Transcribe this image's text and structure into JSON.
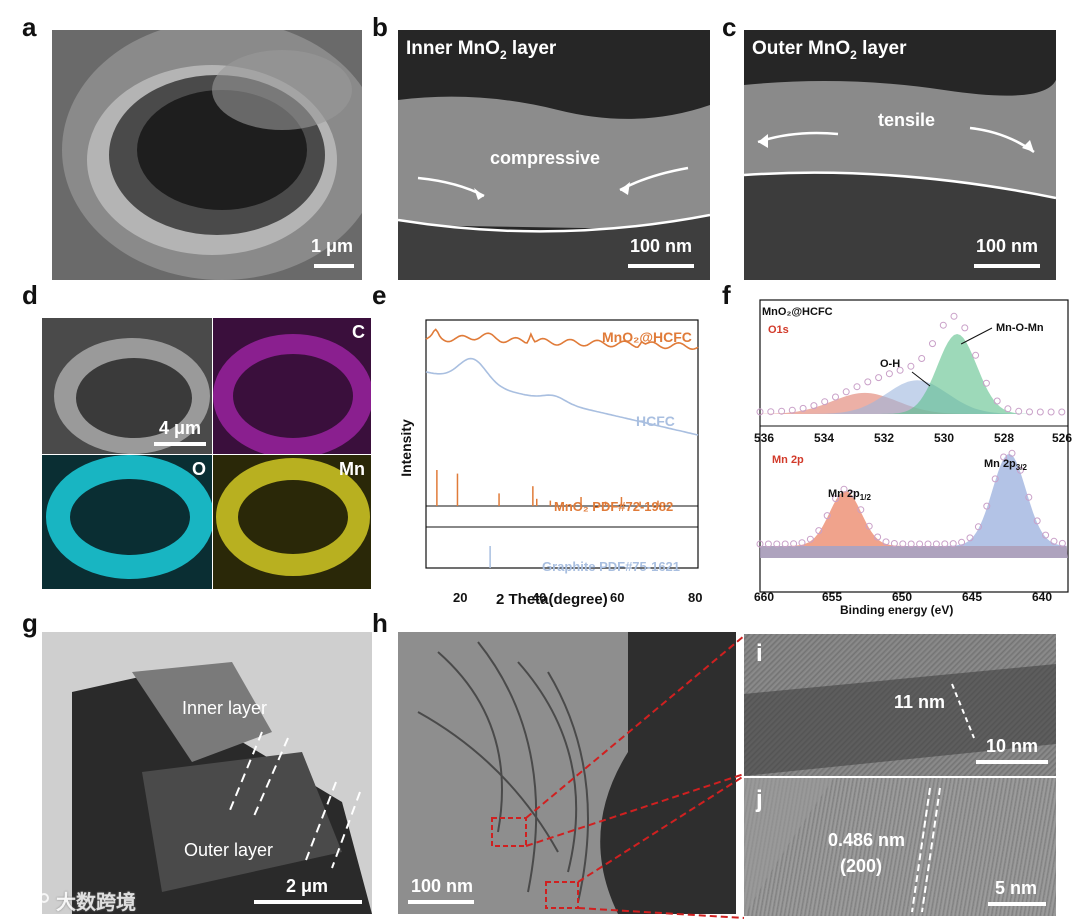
{
  "panel_labels": {
    "a": "a",
    "b": "b",
    "c": "c",
    "d": "d",
    "e": "e",
    "f": "f",
    "g": "g",
    "h": "h",
    "i": "i",
    "j": "j"
  },
  "panel_a": {
    "scale": "1 μm"
  },
  "panel_b": {
    "title_pre": "Inner MnO",
    "title_sub": "2",
    "title_post": " layer",
    "annotation": "compressive",
    "scale": "100 nm"
  },
  "panel_c": {
    "title_pre": "Outer MnO",
    "title_sub": "2",
    "title_post": " layer",
    "annotation": "tensile",
    "scale": "100 nm"
  },
  "panel_d": {
    "scale": "4 μm",
    "map_c": "C",
    "map_o": "O",
    "map_mn": "Mn",
    "colors": {
      "c": "#8a1f8f",
      "o": "#18b5c2",
      "mn": "#b8b020"
    }
  },
  "panel_g": {
    "inner": "Inner layer",
    "outer": "Outer layer",
    "scale": "2 μm"
  },
  "panel_h": {
    "scale": "100 nm"
  },
  "panel_i": {
    "measure": "11 nm",
    "scale": "10 nm"
  },
  "panel_j": {
    "spacing": "0.486 nm",
    "plane": "(200)",
    "scale": "5 nm"
  },
  "watermark": {
    "text": "大数跨境"
  },
  "chart_data": [
    {
      "type": "line",
      "panel": "e",
      "xlabel": "2 Theta(degree)",
      "ylabel": "Intensity",
      "xticks": [
        "20",
        "40",
        "60",
        "80"
      ],
      "xlim": [
        10,
        80
      ],
      "series": [
        {
          "name": "MnO₂@HCFC",
          "color": "#e07b39"
        },
        {
          "name": "HCFC",
          "color": "#a9bfe0"
        }
      ],
      "reference": [
        {
          "name": "MnO₂ PDF#72-1982",
          "color": "#e07b39",
          "peaks": [
            [
              12.8,
              1.0
            ],
            [
              18.1,
              0.9
            ],
            [
              28.8,
              0.35
            ],
            [
              37.5,
              0.55
            ],
            [
              38.5,
              0.2
            ],
            [
              42.0,
              0.15
            ],
            [
              49.9,
              0.25
            ],
            [
              56.2,
              0.12
            ],
            [
              60.3,
              0.25
            ],
            [
              65.1,
              0.12
            ],
            [
              69.7,
              0.15
            ]
          ]
        },
        {
          "name": "Graphite PDF#75-1621",
          "color": "#a9bfe0",
          "peaks": [
            [
              26.5,
              1.0
            ]
          ]
        }
      ]
    },
    {
      "type": "line",
      "panel": "f",
      "xlabel": "Binding energy (eV)",
      "top": {
        "sample": "MnO₂@HCFC",
        "region": "O1s",
        "xticks": [
          "536",
          "534",
          "532",
          "530",
          "528",
          "526"
        ],
        "xlim": [
          536,
          526
        ],
        "peaks": [
          {
            "label": "Mn-O-Mn",
            "center": 529.6,
            "color": "#5cc08a"
          },
          {
            "label": "O-H",
            "center": 530.9,
            "color": "#9db5de"
          },
          {
            "center": 532.6,
            "color": "#e07b6a"
          }
        ]
      },
      "bottom": {
        "region": "Mn 2p",
        "xticks": [
          "660",
          "655",
          "650",
          "645",
          "640"
        ],
        "xlim": [
          660,
          638
        ],
        "peaks": [
          {
            "label_pre": "Mn 2p",
            "label_sub": "1/2",
            "center": 653.9,
            "color": "#e8724f"
          },
          {
            "label_pre": "Mn 2p",
            "label_sub": "3/2",
            "center": 642.2,
            "color": "#8aa3d8"
          }
        ]
      }
    }
  ]
}
